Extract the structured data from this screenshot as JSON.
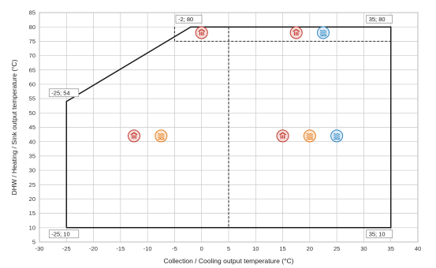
{
  "chart_data": {
    "type": "line",
    "title": "",
    "xlabel": "Collection / Cooling output temperature (°C)",
    "ylabel": "DHW / Heating / Sink output temperature (°C)",
    "xlim": [
      -30,
      40
    ],
    "ylim": [
      5,
      85
    ],
    "xticks": [
      -30,
      -25,
      -20,
      -15,
      -10,
      -5,
      0,
      5,
      10,
      15,
      20,
      25,
      30,
      35,
      40
    ],
    "yticks": [
      5,
      10,
      15,
      20,
      25,
      30,
      35,
      40,
      45,
      50,
      55,
      60,
      65,
      70,
      75,
      80,
      85
    ],
    "grid": true,
    "series": [
      {
        "style": "solid",
        "color": "#1a1a1a",
        "points": [
          [
            -25,
            10
          ],
          [
            -25,
            54
          ],
          [
            -2,
            80
          ],
          [
            35,
            80
          ],
          [
            35,
            10
          ],
          [
            -25,
            10
          ]
        ]
      },
      {
        "style": "dashed",
        "color": "#333333",
        "points": [
          [
            -5,
            80
          ],
          [
            -5,
            75
          ],
          [
            35,
            75
          ]
        ]
      },
      {
        "style": "dashed",
        "color": "#333333",
        "points": [
          [
            5,
            80
          ],
          [
            5,
            10
          ]
        ]
      }
    ],
    "corner_labels": [
      {
        "x": -25,
        "y": 54,
        "text": "-25; 54"
      },
      {
        "x": -2,
        "y": 80,
        "text": "-2; 80"
      },
      {
        "x": 35,
        "y": 80,
        "text": "35; 80"
      },
      {
        "x": -25,
        "y": 10,
        "text": "-25; 10"
      },
      {
        "x": 35,
        "y": 10,
        "text": "35; 10"
      }
    ],
    "markers": [
      {
        "x": 0,
        "y": 78,
        "icon": "radiator-icon",
        "fill": "#f6dada",
        "stroke": "#c0392b",
        "glyph_color": "#c0392b"
      },
      {
        "x": 17.5,
        "y": 78,
        "icon": "radiator-icon",
        "fill": "#f6dada",
        "stroke": "#c0392b",
        "glyph_color": "#c0392b"
      },
      {
        "x": 22.5,
        "y": 78,
        "icon": "floor-heating-icon",
        "fill": "#dcebf8",
        "stroke": "#2e86c1",
        "glyph_color": "#2e86c1"
      },
      {
        "x": -12.5,
        "y": 42,
        "icon": "radiator-icon",
        "fill": "#f6dada",
        "stroke": "#c0392b",
        "glyph_color": "#c0392b"
      },
      {
        "x": -7.5,
        "y": 42,
        "icon": "floor-heating-icon",
        "fill": "#fbe5cf",
        "stroke": "#e67e22",
        "glyph_color": "#e67e22"
      },
      {
        "x": 15,
        "y": 42,
        "icon": "radiator-icon",
        "fill": "#f6dada",
        "stroke": "#c0392b",
        "glyph_color": "#c0392b"
      },
      {
        "x": 20,
        "y": 42,
        "icon": "floor-heating-icon",
        "fill": "#fbe5cf",
        "stroke": "#e67e22",
        "glyph_color": "#e67e22"
      },
      {
        "x": 25,
        "y": 42,
        "icon": "floor-heating-icon",
        "fill": "#dcebf8",
        "stroke": "#2e86c1",
        "glyph_color": "#2e86c1"
      }
    ]
  }
}
